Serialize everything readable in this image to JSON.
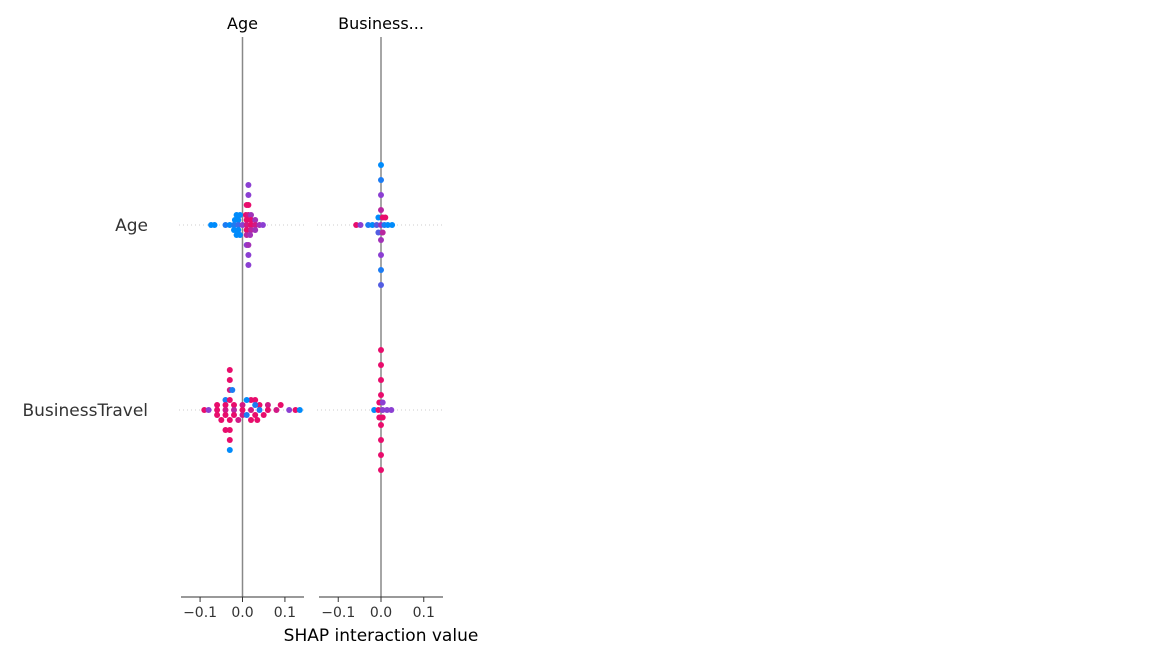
{
  "chart_data": {
    "type": "scatter",
    "xlabel": "SHAP interaction value",
    "features": [
      "Age",
      "BusinessTravel"
    ],
    "panel_titles": [
      "Age",
      "Business..."
    ],
    "xlim": [
      -0.145,
      0.145
    ],
    "xticks": [
      -0.1,
      0.0,
      0.1
    ],
    "xtick_labels": [
      "−0.1",
      "0.0",
      "0.1"
    ],
    "color_low": "#008bfb",
    "color_mid": "#8b3fd2",
    "color_high": "#ff0052",
    "series": [
      {
        "row": "Age",
        "column": "Age",
        "spread": "wide",
        "points": [
          [
            0.014,
            4,
            0.5
          ],
          [
            0.014,
            3,
            0.5
          ],
          [
            0.014,
            2,
            0.9
          ],
          [
            0.01,
            2,
            0.9
          ],
          [
            -0.014,
            1,
            0.0
          ],
          [
            -0.006,
            1,
            0.0
          ],
          [
            0.008,
            1,
            0.9
          ],
          [
            0.014,
            1,
            0.8
          ],
          [
            0.02,
            1,
            0.6
          ],
          [
            -0.018,
            0.5,
            0.0
          ],
          [
            -0.01,
            0.5,
            0.0
          ],
          [
            0.01,
            0.5,
            0.9
          ],
          [
            0.02,
            0.5,
            0.9
          ],
          [
            0.03,
            0.5,
            0.6
          ],
          [
            -0.074,
            0,
            0.0
          ],
          [
            -0.066,
            0,
            0.0
          ],
          [
            -0.04,
            0,
            0.1
          ],
          [
            -0.03,
            0,
            0.0
          ],
          [
            -0.02,
            0,
            0.1
          ],
          [
            -0.01,
            0,
            0.2
          ],
          [
            0.0,
            0,
            0.5
          ],
          [
            0.01,
            0,
            0.8
          ],
          [
            0.02,
            0,
            0.9
          ],
          [
            0.03,
            0,
            0.8
          ],
          [
            0.04,
            0,
            0.6
          ],
          [
            0.048,
            0,
            0.5
          ],
          [
            -0.02,
            -0.5,
            0.0
          ],
          [
            -0.01,
            -0.5,
            0.0
          ],
          [
            0.01,
            -0.5,
            0.9
          ],
          [
            0.02,
            -0.5,
            0.7
          ],
          [
            0.03,
            -0.5,
            0.6
          ],
          [
            -0.014,
            -1,
            0.0
          ],
          [
            -0.006,
            -1,
            0.0
          ],
          [
            0.01,
            -1,
            0.7
          ],
          [
            0.018,
            -1,
            0.6
          ],
          [
            0.01,
            -2,
            0.5
          ],
          [
            0.014,
            -2,
            0.6
          ],
          [
            0.014,
            -3,
            0.5
          ],
          [
            0.014,
            -4,
            0.5
          ]
        ]
      },
      {
        "row": "Age",
        "column": "BusinessTravel",
        "spread": "narrow",
        "points": [
          [
            0.0,
            4,
            0.0
          ],
          [
            0.0,
            3,
            0.1
          ],
          [
            0.0,
            2,
            0.5
          ],
          [
            0.0,
            1,
            0.7
          ],
          [
            -0.006,
            0.5,
            0.0
          ],
          [
            0.004,
            0.5,
            0.9
          ],
          [
            0.01,
            0.5,
            0.9
          ],
          [
            -0.058,
            0,
            0.9
          ],
          [
            -0.048,
            0,
            0.5
          ],
          [
            -0.03,
            0,
            0.1
          ],
          [
            -0.02,
            0,
            0.0
          ],
          [
            -0.01,
            0,
            0.3
          ],
          [
            0.0,
            0,
            0.6
          ],
          [
            0.008,
            0,
            0.1
          ],
          [
            0.016,
            0,
            0.0
          ],
          [
            0.026,
            0,
            0.0
          ],
          [
            -0.006,
            -0.5,
            0.3
          ],
          [
            0.004,
            -0.5,
            0.7
          ],
          [
            0.0,
            -1,
            0.6
          ],
          [
            0.0,
            -2,
            0.5
          ],
          [
            0.0,
            -3,
            0.1
          ],
          [
            0.0,
            -4,
            0.3
          ]
        ]
      },
      {
        "row": "BusinessTravel",
        "column": "Age",
        "spread": "wide",
        "points": [
          [
            -0.03,
            4,
            0.9
          ],
          [
            -0.03,
            3,
            0.9
          ],
          [
            -0.03,
            2,
            0.8
          ],
          [
            -0.024,
            2,
            0.1
          ],
          [
            -0.04,
            1,
            0.1
          ],
          [
            -0.03,
            1,
            0.9
          ],
          [
            0.02,
            1,
            0.9
          ],
          [
            0.03,
            1,
            0.9
          ],
          [
            0.01,
            1,
            0.0
          ],
          [
            -0.06,
            0.5,
            0.9
          ],
          [
            -0.04,
            0.5,
            0.9
          ],
          [
            -0.02,
            0.5,
            0.9
          ],
          [
            0.0,
            0.5,
            0.8
          ],
          [
            0.04,
            0.5,
            0.9
          ],
          [
            0.06,
            0.5,
            0.8
          ],
          [
            0.09,
            0.5,
            0.9
          ],
          [
            0.03,
            0.5,
            0.1
          ],
          [
            -0.09,
            0,
            0.9
          ],
          [
            -0.08,
            0,
            0.5
          ],
          [
            -0.06,
            0,
            0.9
          ],
          [
            -0.04,
            0,
            0.8
          ],
          [
            -0.02,
            0,
            0.7
          ],
          [
            0.0,
            0,
            0.9
          ],
          [
            0.02,
            0,
            0.8
          ],
          [
            0.04,
            0,
            0.1
          ],
          [
            0.06,
            0,
            0.9
          ],
          [
            0.08,
            0,
            0.8
          ],
          [
            0.11,
            0,
            0.5
          ],
          [
            0.125,
            0,
            0.9
          ],
          [
            0.135,
            0,
            0.0
          ],
          [
            -0.06,
            -0.5,
            0.9
          ],
          [
            -0.04,
            -0.5,
            0.9
          ],
          [
            -0.02,
            -0.5,
            0.9
          ],
          [
            0.0,
            -0.5,
            0.8
          ],
          [
            0.03,
            -0.5,
            0.9
          ],
          [
            0.05,
            -0.5,
            0.9
          ],
          [
            0.01,
            -0.5,
            0.1
          ],
          [
            -0.05,
            -1,
            0.9
          ],
          [
            -0.03,
            -1,
            0.9
          ],
          [
            -0.01,
            -1,
            0.8
          ],
          [
            0.02,
            -1,
            0.9
          ],
          [
            0.035,
            -1,
            0.9
          ],
          [
            -0.04,
            -2,
            0.9
          ],
          [
            -0.03,
            -2,
            0.9
          ],
          [
            -0.03,
            -3,
            0.9
          ],
          [
            -0.03,
            -4,
            0.0
          ]
        ]
      },
      {
        "row": "BusinessTravel",
        "column": "BusinessTravel",
        "spread": "narrow",
        "points": [
          [
            0.0,
            4,
            0.9
          ],
          [
            0.0,
            3,
            0.9
          ],
          [
            0.0,
            2,
            0.9
          ],
          [
            0.0,
            1,
            0.9
          ],
          [
            -0.004,
            0.5,
            0.9
          ],
          [
            0.004,
            0.5,
            0.5
          ],
          [
            -0.016,
            0,
            0.0
          ],
          [
            -0.006,
            0,
            0.9
          ],
          [
            0.004,
            0,
            0.5
          ],
          [
            0.014,
            0,
            0.5
          ],
          [
            0.024,
            0,
            0.5
          ],
          [
            -0.004,
            -0.5,
            0.9
          ],
          [
            0.004,
            -0.5,
            0.9
          ],
          [
            0.0,
            -1,
            0.9
          ],
          [
            0.0,
            -2,
            0.9
          ],
          [
            0.0,
            -3,
            0.9
          ],
          [
            0.0,
            -4,
            0.9
          ]
        ]
      }
    ]
  }
}
